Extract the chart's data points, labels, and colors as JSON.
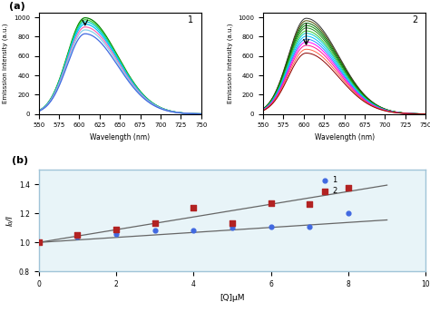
{
  "panel1_label": "1",
  "panel2_label": "2",
  "panel_b_label": "(b)",
  "panel_a_label": "(a)",
  "xlabel_spec": "Wavelength (nm)",
  "ylabel_spec": "Emisssion intensity (a.u.)",
  "xlim_spec": [
    550,
    750
  ],
  "ylim_spec": [
    0,
    1050
  ],
  "yticks_spec": [
    0,
    200,
    400,
    600,
    800,
    1000
  ],
  "panel1_colors": [
    "#008000",
    "#32CD32",
    "#00CED1",
    "#00BFFF",
    "#FF69B4",
    "#87CEEB",
    "#4169E1"
  ],
  "panel1_peaks": [
    995,
    975,
    955,
    930,
    900,
    870,
    830
  ],
  "panel2_colors": [
    "#2F2F2F",
    "#4B4B00",
    "#006400",
    "#008B00",
    "#228B22",
    "#32CD32",
    "#00CDCD",
    "#00BFFF",
    "#1E90FF",
    "#FF00FF",
    "#FF1493",
    "#FF6347",
    "#8B0000"
  ],
  "panel2_peaks": [
    990,
    965,
    940,
    915,
    890,
    860,
    835,
    805,
    775,
    745,
    710,
    670,
    630
  ],
  "scatter1_x": [
    0,
    1,
    2,
    3,
    4,
    5,
    6,
    7,
    8
  ],
  "scatter1_y": [
    1.0,
    1.04,
    1.06,
    1.08,
    1.08,
    1.1,
    1.11,
    1.11,
    1.2
  ],
  "scatter2_x": [
    0,
    1,
    2,
    3,
    4,
    5,
    6,
    7,
    8
  ],
  "scatter2_y": [
    1.0,
    1.05,
    1.09,
    1.13,
    1.24,
    1.13,
    1.27,
    1.265,
    1.38
  ],
  "fit1_x": [
    0,
    9
  ],
  "fit1_y": [
    1.0,
    1.155
  ],
  "fit2_x": [
    0,
    9
  ],
  "fit2_y": [
    1.0,
    1.395
  ],
  "xlabel_b": "[Q]μM",
  "ylabel_b": "I₀/I",
  "xlim_b": [
    0,
    10
  ],
  "ylim_b": [
    0.8,
    1.5
  ],
  "yticks_b": [
    0.8,
    1.0,
    1.2,
    1.4
  ],
  "xticks_b": [
    0,
    2,
    4,
    6,
    8,
    10
  ],
  "color1": "#4169E1",
  "color2": "#B22222",
  "fit_line_color": "#666666",
  "background_color": "#e8f4f8",
  "border_color": "#a0c4d8"
}
